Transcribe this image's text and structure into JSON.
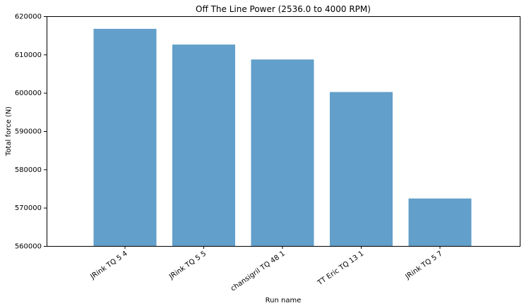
{
  "chart_data": {
    "type": "bar",
    "title": "Off The Line Power (2536.0 to 4000 RPM)",
    "xlabel": "Run name",
    "ylabel": "Total force (N)",
    "categories": [
      "JRink TQ 5 4",
      "JRink TQ 5 5",
      "chansigril TQ 48 1",
      "TT Eric TQ 13 1",
      "JRink TQ 5 7"
    ],
    "values": [
      616700,
      612600,
      608700,
      600200,
      572400
    ],
    "ylim": [
      560000,
      620000
    ],
    "yticks": [
      560000,
      570000,
      580000,
      590000,
      600000,
      610000,
      620000
    ],
    "bar_color": "#629fca",
    "grid": false
  }
}
